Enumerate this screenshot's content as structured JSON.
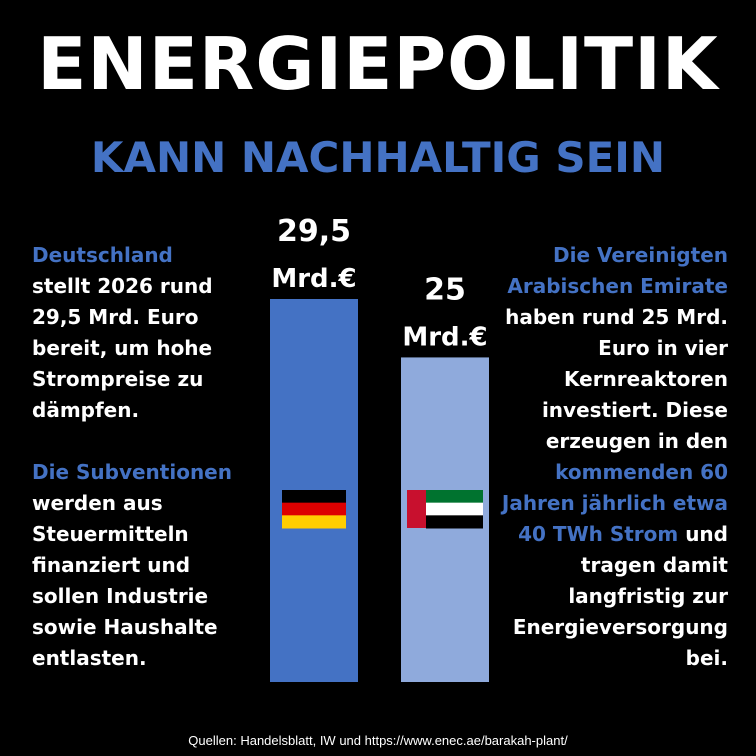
{
  "header": {
    "title": "ENERGIEPOLITIK",
    "subtitle": "KANN NACHHALTIG SEIN"
  },
  "left_column": {
    "p1_highlight": "Deutschland",
    "p1_lines": [
      "stellt 2026 rund",
      "29,5 Mrd. Euro",
      "bereit, um hohe",
      "Strompreise zu",
      "dämpfen."
    ],
    "p2_highlight": "Die Subventionen",
    "p2_lines": [
      "werden aus",
      "Steuermitteln",
      "finanziert und",
      "sollen Industrie",
      "sowie Haushalte",
      "entlasten."
    ]
  },
  "right_column": {
    "p1_highlight_lines": [
      "Die Vereinigten",
      "Arabischen Emirate"
    ],
    "p1_lines": [
      "haben rund 25 Mrd.",
      "Euro in vier",
      "Kernreaktoren",
      "investiert. Diese",
      "erzeugen in den"
    ],
    "p2_highlight_lines": [
      "kommenden 60",
      "Jahren jährlich etwa"
    ],
    "p2_mixed_highlight": "40 TWh Strom",
    "p2_mixed_rest": " und",
    "p2_lines": [
      "tragen damit",
      "langfristig zur",
      "Energieversorgung",
      "bei."
    ]
  },
  "chart_data": {
    "type": "bar",
    "categories": [
      "Deutschland",
      "Vereinigte Arabische Emirate"
    ],
    "values": [
      29.5,
      25
    ],
    "value_labels": [
      [
        "29,5",
        "Mrd.€"
      ],
      [
        "25",
        "Mrd.€"
      ]
    ],
    "colors": [
      "#4472c4",
      "#8faadc"
    ],
    "flags": [
      "germany-flag",
      "uae-flag"
    ],
    "ylim": [
      0,
      29.5
    ],
    "grid": false
  },
  "footer": {
    "source": "Quellen: Handelsblatt, IW und https://www.enec.ae/barakah-plant/"
  }
}
